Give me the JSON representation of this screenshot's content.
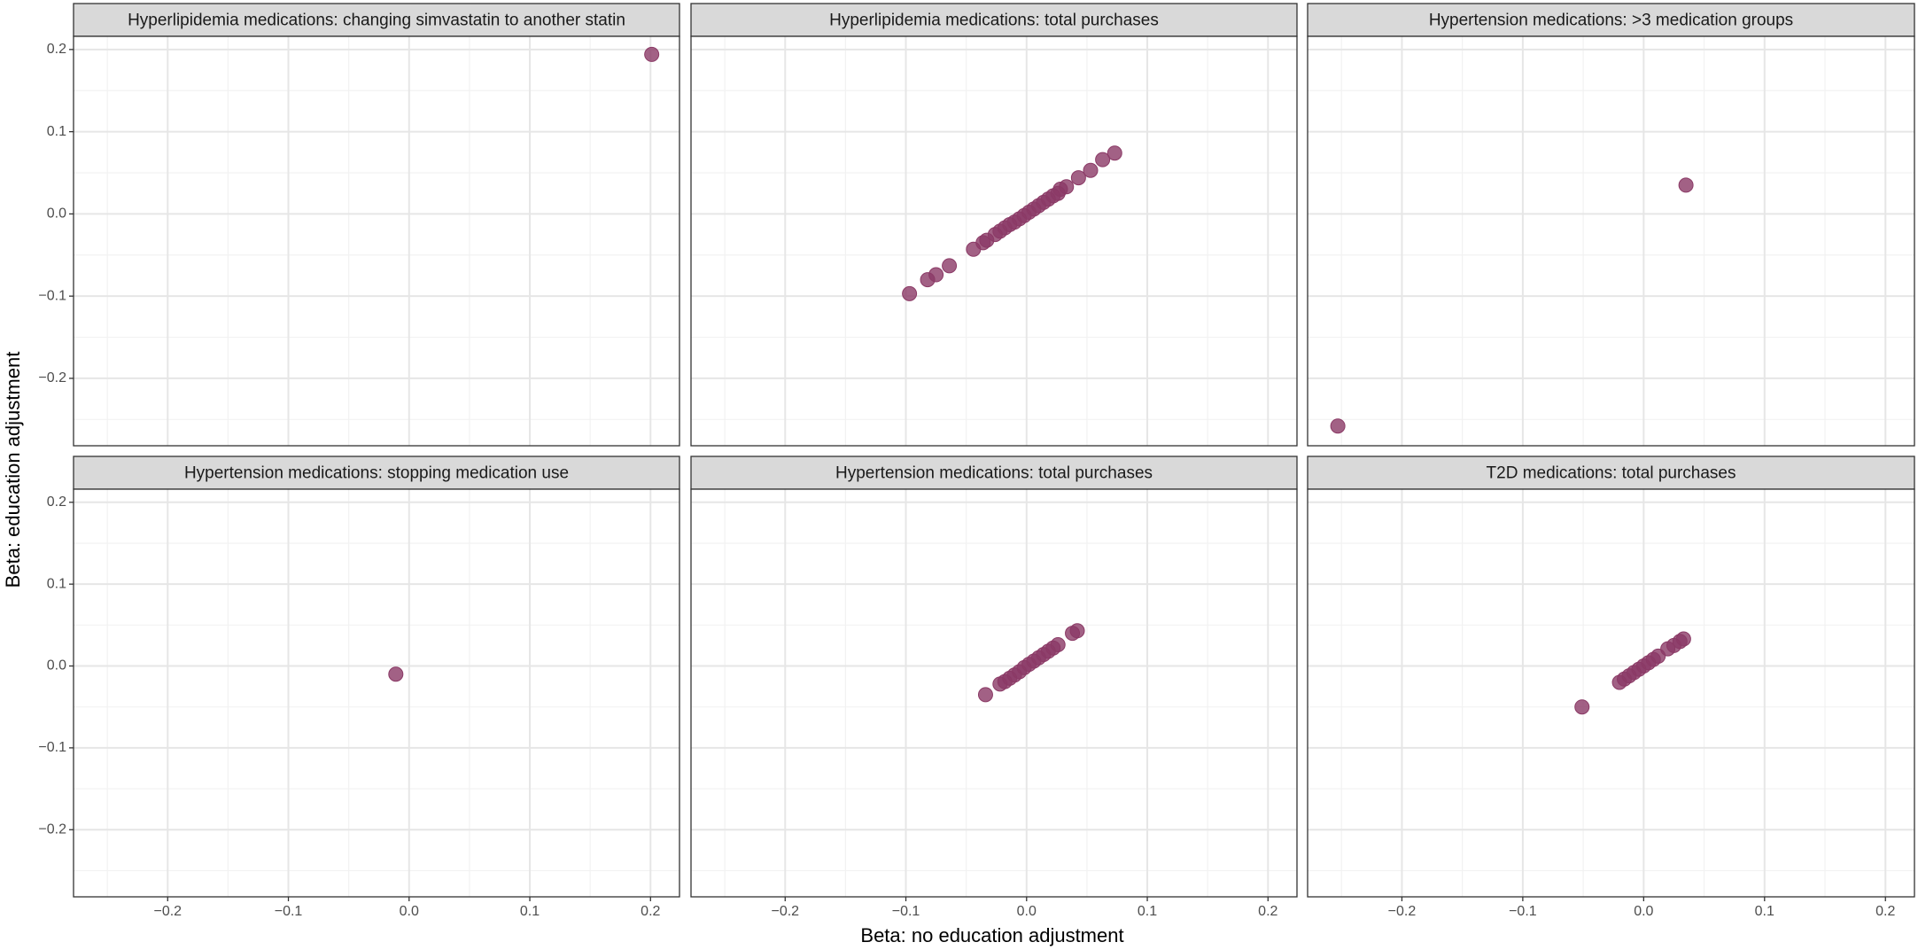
{
  "chart_data": {
    "type": "scatter",
    "x_label": "Beta: no education adjustment",
    "y_label": "Beta: education adjustment",
    "color": "#8b3a66",
    "xlim": [
      -0.278,
      0.224
    ],
    "ylim": [
      -0.282,
      0.216
    ],
    "xticks": [
      {
        "value": -0.2,
        "label": "−0.2"
      },
      {
        "value": -0.1,
        "label": "−0.1"
      },
      {
        "value": 0,
        "label": "0.0"
      },
      0.1,
      0.2
    ],
    "yticks": [
      {
        "value": -0.2,
        "label": "−0.2"
      },
      {
        "value": -0.1,
        "label": "−0.1"
      },
      {
        "value": 0,
        "label": "0.0"
      },
      0.1,
      0.2
    ],
    "minor_xticks": [
      -0.25,
      -0.15,
      -0.05,
      0.05,
      0.15
    ],
    "minor_yticks": [
      -0.25,
      -0.15,
      -0.05,
      0.05,
      0.15
    ],
    "grid": true,
    "facets": [
      {
        "title": "Hyperlipidemia medications: changing simvastatin to another statin",
        "x": [
          0.201
        ],
        "y": [
          0.194
        ]
      },
      {
        "title": "Hyperlipidemia medications: total purchases",
        "x": [
          -0.097,
          -0.082,
          -0.075,
          -0.064,
          -0.044,
          -0.036,
          -0.033,
          -0.026,
          -0.022,
          -0.018,
          -0.014,
          -0.01,
          -0.006,
          -0.002,
          0.002,
          0.006,
          0.01,
          0.014,
          0.018,
          0.022,
          0.026,
          0.028,
          0.033,
          0.043,
          0.053,
          0.063,
          0.073
        ],
        "y": [
          -0.097,
          -0.08,
          -0.074,
          -0.063,
          -0.043,
          -0.035,
          -0.032,
          -0.025,
          -0.021,
          -0.017,
          -0.013,
          -0.01,
          -0.006,
          -0.002,
          0.002,
          0.006,
          0.01,
          0.014,
          0.018,
          0.022,
          0.025,
          0.03,
          0.033,
          0.044,
          0.053,
          0.066,
          0.074
        ]
      },
      {
        "title": "Hypertension medications: >3 medication groups",
        "x": [
          -0.253,
          0.035
        ],
        "y": [
          -0.258,
          0.035
        ]
      },
      {
        "title": "Hypertension medications: stopping medication use",
        "x": [
          -0.011
        ],
        "y": [
          -0.01
        ]
      },
      {
        "title": "Hypertension medications: total purchases",
        "x": [
          -0.034,
          -0.022,
          -0.018,
          -0.014,
          -0.01,
          -0.006,
          -0.002,
          0.002,
          0.006,
          0.01,
          0.014,
          0.018,
          0.022,
          0.026,
          0.038,
          0.042
        ],
        "y": [
          -0.035,
          -0.022,
          -0.019,
          -0.015,
          -0.011,
          -0.007,
          -0.002,
          0.002,
          0.006,
          0.01,
          0.014,
          0.018,
          0.022,
          0.026,
          0.04,
          0.043
        ]
      },
      {
        "title": "T2D medications: total purchases",
        "x": [
          -0.051,
          -0.02,
          -0.016,
          -0.012,
          -0.008,
          -0.004,
          0,
          0.004,
          0.008,
          0.012,
          0.02,
          0.025,
          0.03,
          0.033
        ],
        "y": [
          -0.05,
          -0.02,
          -0.016,
          -0.012,
          -0.008,
          -0.004,
          0,
          0.004,
          0.008,
          0.012,
          0.021,
          0.025,
          0.03,
          0.033
        ]
      }
    ]
  }
}
